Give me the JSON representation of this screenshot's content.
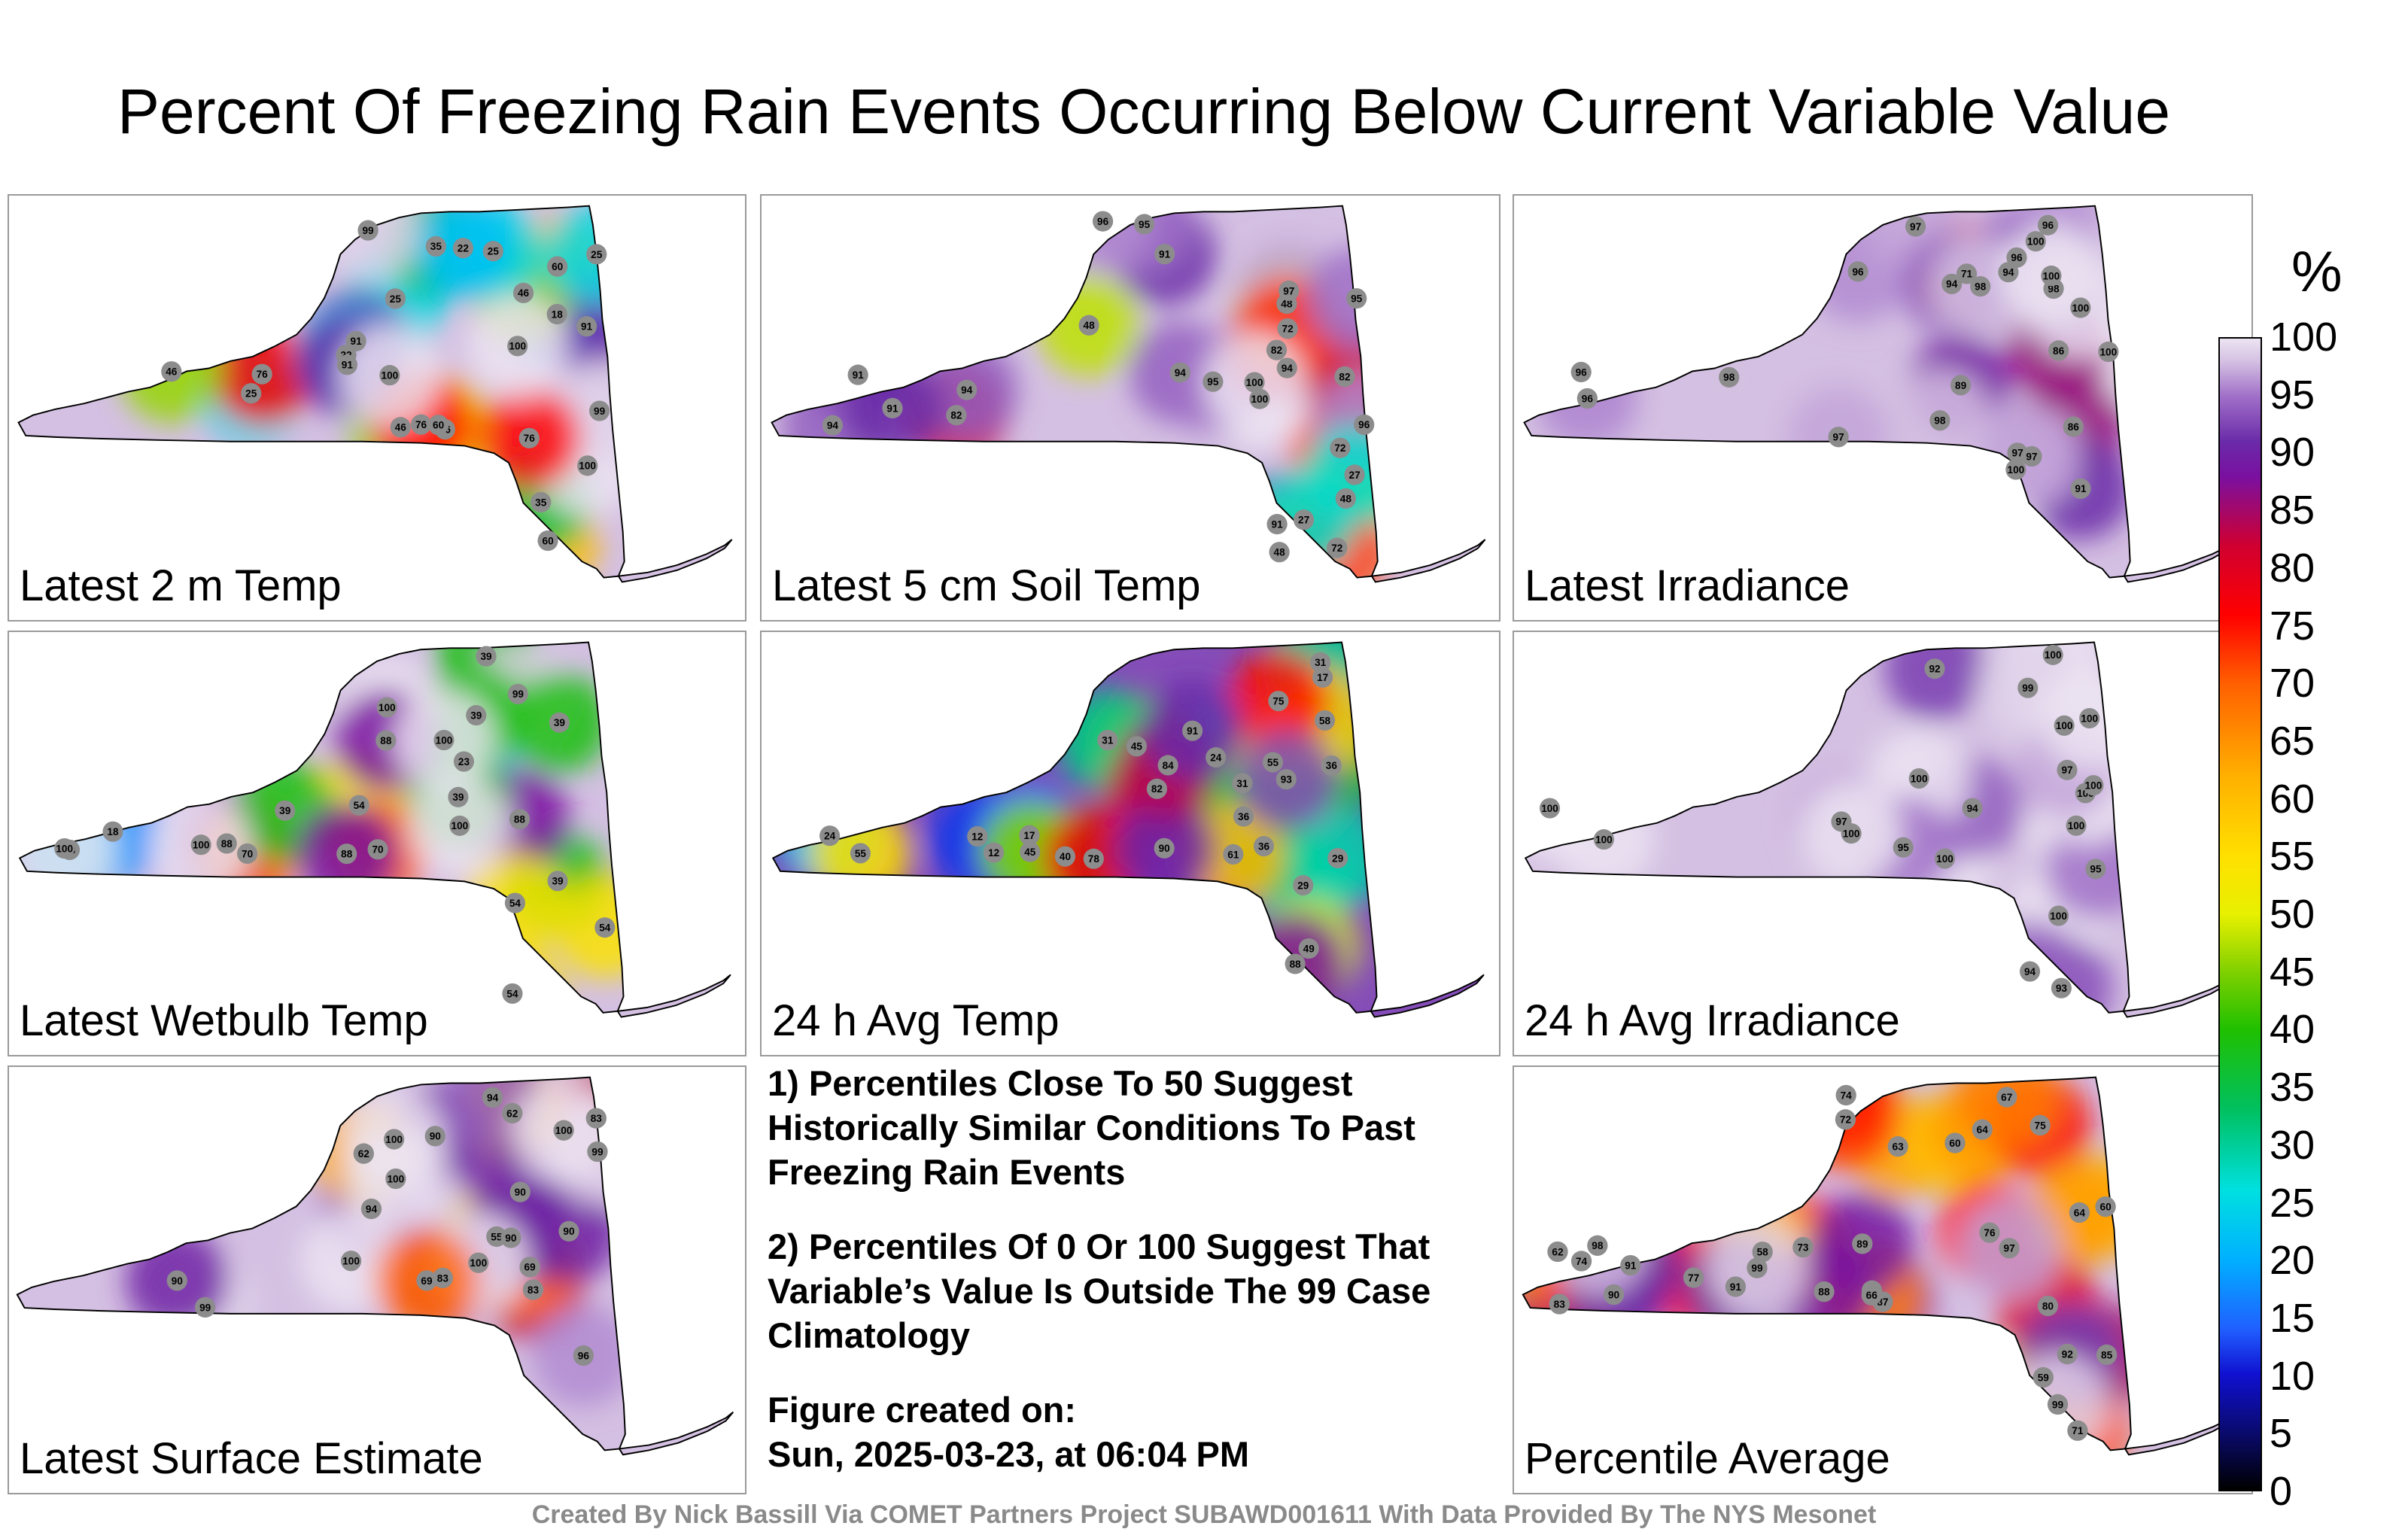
{
  "title": "Percent Of Freezing Rain Events Occurring Below Current Variable Value",
  "colorbar": {
    "unit": "%",
    "ticks": [
      "100",
      "95",
      "90",
      "85",
      "80",
      "75",
      "70",
      "65",
      "60",
      "55",
      "50",
      "45",
      "40",
      "35",
      "30",
      "25",
      "20",
      "15",
      "10",
      "5",
      "0"
    ]
  },
  "notes": {
    "line1": "1) Percentiles Close To 50 Suggest Historically Similar Conditions To Past Freezing Rain Events",
    "line2": "2) Percentiles Of 0 Or 100 Suggest That Variable’s Value Is Outside The 99 Case Climatology",
    "created_label": "Figure created on:",
    "created_date": "Sun, 2025-03-23, at 06:04 PM"
  },
  "credit": "Created By Nick Bassill Via COMET Partners Project SUBAWD001611 With Data Provided By The NYS Mesonet",
  "chart_data": [
    {
      "type": "heatmap",
      "label": "Latest 2 m Temp",
      "sample_values": [
        60,
        60,
        25,
        25,
        91,
        46,
        46,
        18,
        76,
        35,
        35,
        60,
        91,
        22,
        91,
        46,
        25,
        25,
        46,
        22,
        99,
        100,
        76,
        99,
        100,
        76,
        100
      ]
    },
    {
      "type": "heatmap",
      "label": "Latest 5 cm Soil Temp",
      "sample_values": [
        82,
        94,
        94,
        91,
        91,
        72,
        91,
        94,
        48,
        48,
        72,
        82,
        100,
        48,
        27,
        48,
        95,
        95,
        94,
        97,
        96,
        82,
        72,
        27,
        91,
        95,
        96,
        100
      ]
    },
    {
      "type": "heatmap",
      "label": "Latest Irradiance",
      "sample_values": [
        100,
        100,
        96,
        71,
        100,
        86,
        89,
        96,
        86,
        91,
        97,
        96,
        98,
        97,
        94,
        96,
        97,
        98,
        94,
        97,
        98,
        100,
        96,
        98,
        100
      ]
    },
    {
      "type": "heatmap",
      "label": "Latest Wetbulb Temp",
      "sample_values": [
        54,
        39,
        39,
        88,
        70,
        70,
        54,
        23,
        18,
        88,
        39,
        39,
        54,
        99,
        100,
        54,
        39,
        39,
        23,
        100,
        100,
        88,
        88,
        100,
        100
      ]
    },
    {
      "type": "heatmap",
      "label": "24 h Avg Temp",
      "sample_values": [
        17,
        24,
        45,
        31,
        12,
        12,
        31,
        29,
        17,
        55,
        36,
        36,
        24,
        29,
        40,
        55,
        58,
        45,
        75,
        78,
        49,
        36,
        31,
        61,
        82,
        90,
        88,
        84,
        93,
        91
      ]
    },
    {
      "type": "heatmap",
      "label": "24 h Avg Irradiance",
      "sample_values": [
        100,
        100,
        100,
        94,
        100,
        100,
        92,
        95,
        100,
        95,
        97,
        93,
        100,
        94,
        100,
        99,
        100,
        97,
        100,
        100,
        100
      ]
    },
    {
      "type": "heatmap",
      "label": "Latest Surface Estimate",
      "sample_values": [
        83,
        62,
        94,
        83,
        90,
        69,
        55,
        62,
        90,
        83,
        90,
        90,
        100,
        99,
        94,
        96,
        99,
        100,
        100,
        90,
        69,
        100,
        100
      ]
    },
    {
      "type": "heatmap",
      "label": "Percentile Average",
      "sample_values": [
        73,
        74,
        63,
        72,
        87,
        77,
        60,
        66,
        83,
        62,
        59,
        60,
        74,
        64,
        58,
        75,
        80,
        76,
        67,
        71,
        74,
        64,
        91,
        85,
        92,
        91,
        89,
        88,
        90,
        97,
        99,
        98,
        99
      ]
    }
  ]
}
